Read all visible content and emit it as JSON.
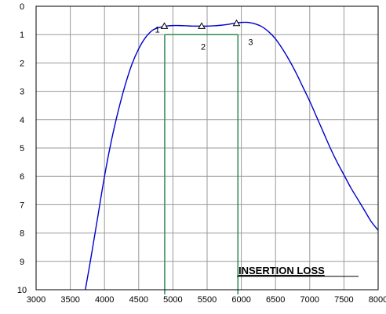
{
  "chart_data": {
    "type": "line",
    "title": "INSERTION  LOSS",
    "xlabel": "",
    "ylabel": "",
    "xlim": [
      3000,
      8000
    ],
    "ylim": [
      0,
      10
    ],
    "y_inverted": true,
    "grid": true,
    "x_ticks": [
      "3000",
      "3500",
      "4000",
      "4500",
      "5000",
      "5500",
      "6000",
      "6500",
      "7000",
      "7500",
      "8000"
    ],
    "y_ticks": [
      "0",
      "1",
      "2",
      "3",
      "4",
      "5",
      "6",
      "7",
      "8",
      "9",
      "10"
    ],
    "series": [
      {
        "color": "#0000cc",
        "x": [
          3720,
          3800,
          3900,
          4000,
          4100,
          4200,
          4300,
          4400,
          4500,
          4600,
          4700,
          4800,
          4900,
          5000,
          5100,
          5200,
          5300,
          5400,
          5500,
          5600,
          5700,
          5800,
          5900,
          6000,
          6100,
          6200,
          6300,
          6400,
          6500,
          6600,
          6700,
          6800,
          6900,
          7000,
          7100,
          7200,
          7300,
          7400,
          7500,
          7600,
          7700,
          7800,
          7900,
          8000
        ],
        "y": [
          10.0,
          8.9,
          7.45,
          6.0,
          4.75,
          3.7,
          2.8,
          2.05,
          1.5,
          1.1,
          0.85,
          0.75,
          0.7,
          0.68,
          0.68,
          0.69,
          0.7,
          0.7,
          0.7,
          0.69,
          0.67,
          0.64,
          0.6,
          0.57,
          0.57,
          0.62,
          0.72,
          0.9,
          1.15,
          1.5,
          1.9,
          2.35,
          2.85,
          3.35,
          3.9,
          4.45,
          5.0,
          5.5,
          5.95,
          6.4,
          6.8,
          7.2,
          7.6,
          7.9
        ]
      }
    ],
    "markers": [
      {
        "label": "1",
        "x": 4875,
        "y": 0.7
      },
      {
        "label": "2",
        "x": 5420,
        "y": 0.7
      },
      {
        "label": "3",
        "x": 5930,
        "y": 0.6
      }
    ],
    "mask": {
      "color": "#2e8b57",
      "x_left": 4880,
      "x_right": 5950,
      "y_top": 1.0,
      "y_bottom": 10.0
    }
  }
}
